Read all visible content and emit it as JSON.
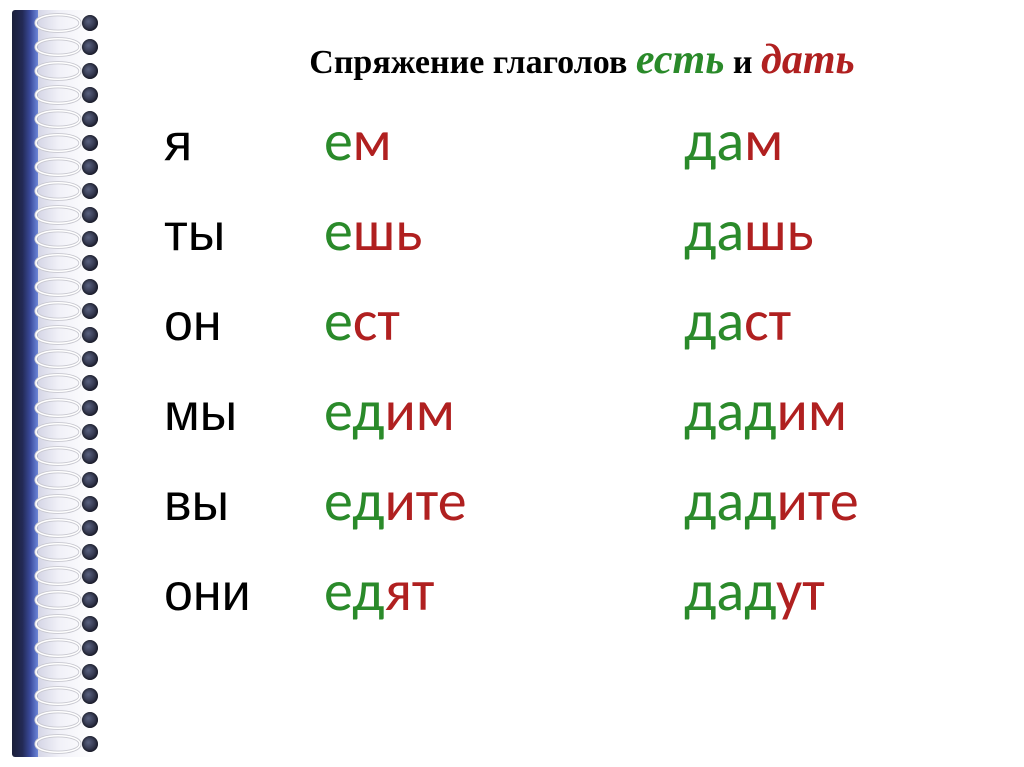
{
  "title": {
    "prefix": "Спряжение глаголов ",
    "verb1": "есть",
    "connector": " и ",
    "verb2": "дать"
  },
  "colors": {
    "stem_green": "#2a8a2a",
    "ending_red": "#b02020",
    "text_black": "#000000",
    "book_spine_start": "#1b1f3a",
    "book_spine_end": "#6c86d8",
    "background": "#ffffff"
  },
  "fonts": {
    "title_family": "Times New Roman",
    "body_family": "Calibri",
    "title_size_pt": 26,
    "verb_title_size_pt": 32,
    "row_size_pt": 44,
    "pronoun_size_pt": 40
  },
  "rows": [
    {
      "pronoun": "я",
      "left_stem": "е",
      "left_end": "м",
      "right_stem": "да",
      "right_end": "м"
    },
    {
      "pronoun": "ты",
      "left_stem": "е",
      "left_end": "шь",
      "right_stem": "да",
      "right_end": "шь"
    },
    {
      "pronoun": "он",
      "left_stem": "е",
      "left_end": "ст",
      "right_stem": "да",
      "right_end": "ст"
    },
    {
      "pronoun": "мы",
      "left_stem": "ед",
      "left_end": "им",
      "right_stem": "дад",
      "right_end": "им"
    },
    {
      "pronoun": "вы",
      "left_stem": "ед",
      "left_end": "ите",
      "right_stem": "дад",
      "right_end": "ите"
    },
    {
      "pronoun": "они",
      "left_stem": "ед",
      "left_end": "ят",
      "right_stem": "дад",
      "right_end": "ут"
    }
  ],
  "ring_count": 31
}
